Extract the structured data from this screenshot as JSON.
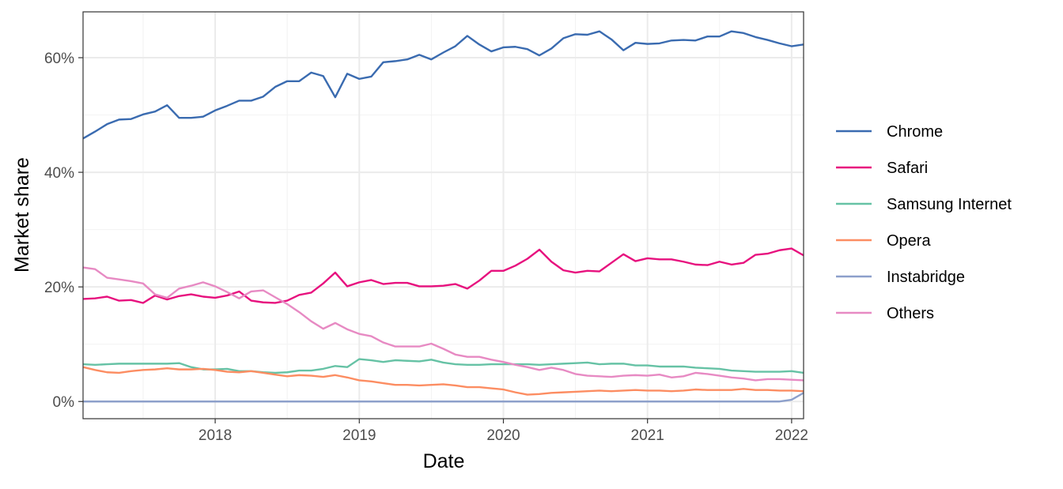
{
  "chart_data": {
    "type": "line",
    "title": "",
    "xlabel": "Date",
    "ylabel": "Market share",
    "xlim": [
      2017.083,
      2022.083
    ],
    "ylim": [
      -3,
      68
    ],
    "x_ticks": [
      {
        "value": 2018,
        "label": "2018"
      },
      {
        "value": 2019,
        "label": "2019"
      },
      {
        "value": 2020,
        "label": "2020"
      },
      {
        "value": 2021,
        "label": "2021"
      },
      {
        "value": 2022,
        "label": "2022"
      }
    ],
    "y_ticks": [
      {
        "value": 0,
        "label": "0%"
      },
      {
        "value": 20,
        "label": "20%"
      },
      {
        "value": 40,
        "label": "40%"
      },
      {
        "value": 60,
        "label": "60%"
      }
    ],
    "grid": true,
    "legend_position": "right",
    "x_start": 2017.083,
    "x_step": 0.08333,
    "series": [
      {
        "name": "Chrome",
        "color": "#3a6bb0",
        "values": [
          45.9,
          47.1,
          48.4,
          49.2,
          49.3,
          50.1,
          50.6,
          51.7,
          49.5,
          49.5,
          49.7,
          50.8,
          51.6,
          52.5,
          52.5,
          53.2,
          54.9,
          55.9,
          55.9,
          57.4,
          56.8,
          53.1,
          57.2,
          56.3,
          56.7,
          59.2,
          59.4,
          59.7,
          60.5,
          59.7,
          60.9,
          62.0,
          63.8,
          62.3,
          61.1,
          61.8,
          61.9,
          61.5,
          60.4,
          61.6,
          63.4,
          64.1,
          64.0,
          64.6,
          63.2,
          61.3,
          62.6,
          62.4,
          62.5,
          63.0,
          63.1,
          63.0,
          63.7,
          63.7,
          64.6,
          64.3,
          63.6,
          63.1,
          62.5,
          62.0,
          62.3
        ]
      },
      {
        "name": "Safari",
        "color": "#e7117e",
        "values": [
          17.9,
          18.0,
          18.3,
          17.6,
          17.7,
          17.2,
          18.5,
          17.8,
          18.4,
          18.7,
          18.3,
          18.1,
          18.5,
          19.2,
          17.6,
          17.3,
          17.2,
          17.6,
          18.6,
          19.0,
          20.6,
          22.5,
          20.1,
          20.8,
          21.2,
          20.5,
          20.7,
          20.7,
          20.1,
          20.1,
          20.2,
          20.5,
          19.7,
          21.1,
          22.8,
          22.8,
          23.7,
          24.9,
          26.5,
          24.4,
          22.9,
          22.5,
          22.8,
          22.7,
          24.2,
          25.7,
          24.5,
          25.0,
          24.8,
          24.8,
          24.4,
          23.9,
          23.8,
          24.4,
          23.9,
          24.2,
          25.6,
          25.8,
          26.4,
          26.7,
          25.5
        ]
      },
      {
        "name": "Samsung Internet",
        "color": "#66c2a5",
        "values": [
          6.5,
          6.4,
          6.5,
          6.6,
          6.6,
          6.6,
          6.6,
          6.6,
          6.7,
          6.0,
          5.6,
          5.6,
          5.7,
          5.3,
          5.3,
          5.1,
          5.0,
          5.1,
          5.4,
          5.4,
          5.7,
          6.2,
          6.0,
          7.4,
          7.2,
          6.9,
          7.2,
          7.1,
          7.0,
          7.3,
          6.8,
          6.5,
          6.4,
          6.4,
          6.5,
          6.5,
          6.5,
          6.5,
          6.4,
          6.5,
          6.6,
          6.7,
          6.8,
          6.5,
          6.6,
          6.6,
          6.3,
          6.3,
          6.1,
          6.1,
          6.1,
          5.9,
          5.8,
          5.7,
          5.4,
          5.3,
          5.2,
          5.2,
          5.2,
          5.3,
          5.0
        ]
      },
      {
        "name": "Opera",
        "color": "#fc8d62",
        "values": [
          6.0,
          5.5,
          5.1,
          5.0,
          5.3,
          5.5,
          5.6,
          5.8,
          5.6,
          5.6,
          5.7,
          5.5,
          5.2,
          5.1,
          5.3,
          5.0,
          4.7,
          4.4,
          4.6,
          4.5,
          4.3,
          4.6,
          4.2,
          3.7,
          3.5,
          3.2,
          2.9,
          2.9,
          2.8,
          2.9,
          3.0,
          2.8,
          2.5,
          2.5,
          2.3,
          2.1,
          1.6,
          1.2,
          1.3,
          1.5,
          1.6,
          1.7,
          1.8,
          1.9,
          1.8,
          1.9,
          2.0,
          1.9,
          1.9,
          1.8,
          1.9,
          2.1,
          2.0,
          2.0,
          2.0,
          2.2,
          2.0,
          2.0,
          1.9,
          1.9,
          1.8
        ]
      },
      {
        "name": "Instabridge",
        "color": "#8da0cb",
        "values": [
          0,
          0,
          0,
          0,
          0,
          0,
          0,
          0,
          0,
          0,
          0,
          0,
          0,
          0,
          0,
          0,
          0,
          0,
          0,
          0,
          0,
          0,
          0,
          0,
          0,
          0,
          0,
          0,
          0,
          0,
          0,
          0,
          0,
          0,
          0,
          0,
          0,
          0,
          0,
          0,
          0,
          0,
          0,
          0,
          0,
          0,
          0,
          0,
          0,
          0,
          0,
          0,
          0,
          0,
          0,
          0,
          0,
          0,
          0,
          0.3,
          1.5
        ]
      },
      {
        "name": "Others",
        "color": "#e78ac3",
        "values": [
          23.4,
          23.1,
          21.6,
          21.3,
          21.0,
          20.6,
          18.7,
          18.1,
          19.7,
          20.2,
          20.8,
          20.1,
          19.1,
          18.0,
          19.2,
          19.4,
          18.2,
          17.0,
          15.6,
          14.0,
          12.7,
          13.7,
          12.6,
          11.8,
          11.4,
          10.3,
          9.6,
          9.6,
          9.6,
          10.1,
          9.2,
          8.2,
          7.8,
          7.8,
          7.3,
          6.9,
          6.4,
          6.0,
          5.5,
          5.9,
          5.5,
          4.8,
          4.5,
          4.4,
          4.3,
          4.5,
          4.6,
          4.5,
          4.7,
          4.2,
          4.4,
          5.0,
          4.8,
          4.5,
          4.2,
          4.0,
          3.7,
          3.9,
          3.9,
          3.8,
          3.7
        ]
      }
    ]
  }
}
